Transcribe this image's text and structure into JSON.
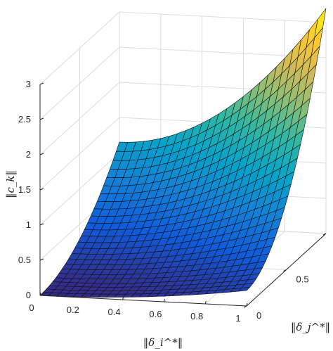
{
  "chart_data": {
    "type": "surface",
    "title": "",
    "zlabel": "‖c_k‖",
    "xlabel": "‖δ_i^*‖",
    "ylabel": "‖δ_j^*‖",
    "xlim": [
      0,
      1
    ],
    "ylim": [
      0,
      1
    ],
    "zlim": [
      0,
      3
    ],
    "z_ticks": [
      0,
      0.5,
      1,
      1.5,
      2,
      2.5,
      3
    ],
    "x_tick_labels": [
      "0",
      "0.2",
      "0.4",
      "0.6",
      "0.8",
      "1"
    ],
    "y_tick_labels": [
      "0",
      "0.5",
      "1"
    ],
    "grid": true,
    "colormap": "parula",
    "mesh_resolution": 25,
    "corner_values": {
      "x0_y0": 0,
      "x1_y0": 0.22,
      "x0_y1": 1.15,
      "x1_y1": 3.2
    },
    "colors": [
      "#352a87",
      "#0f5cdd",
      "#1481d6",
      "#06a4ca",
      "#2eb7a4",
      "#87bf77",
      "#d1bb59",
      "#fec832",
      "#f9fb0e"
    ]
  }
}
